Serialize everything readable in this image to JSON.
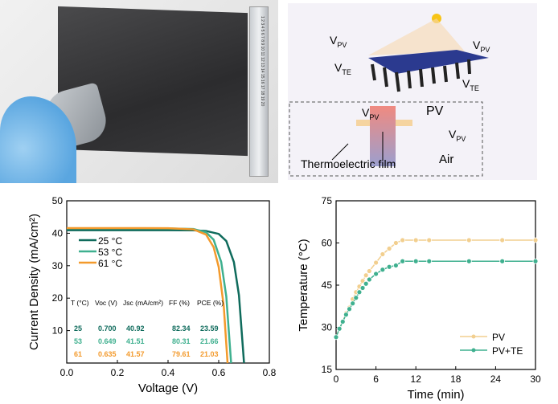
{
  "photo": {
    "ruler_marks": "1 2 3 4 5 6 7 8 9 10 11 12 13 14 15 16 17 18 19 20"
  },
  "diagram": {
    "vpv": "V",
    "vpv_sub": "PV",
    "vte": "V",
    "vte_sub": "TE",
    "pv": "PV",
    "air": "Air",
    "film": "Thermoelectric film"
  },
  "chart_data": [
    {
      "type": "line",
      "xlabel": "Voltage (V)",
      "ylabel": "Current Density (mA/cm²)",
      "xlim": [
        0,
        0.8
      ],
      "ylim": [
        0,
        50
      ],
      "xticks": [
        "0.0",
        "0.2",
        "0.4",
        "0.6",
        "0.8"
      ],
      "yticks": [
        "10",
        "20",
        "30",
        "40",
        "50"
      ],
      "legend": "top-left",
      "series": [
        {
          "name": "25 °C",
          "color": "#0f6b5c",
          "x": [
            0,
            0.1,
            0.2,
            0.3,
            0.4,
            0.5,
            0.55,
            0.6,
            0.63,
            0.66,
            0.68,
            0.7
          ],
          "y": [
            40.92,
            40.92,
            40.92,
            40.92,
            40.92,
            40.9,
            40.7,
            39.8,
            37.6,
            31.1,
            20.9,
            0
          ]
        },
        {
          "name": "53 °C",
          "color": "#3fb08f",
          "x": [
            0,
            0.1,
            0.2,
            0.3,
            0.4,
            0.5,
            0.55,
            0.58,
            0.61,
            0.63,
            0.649
          ],
          "y": [
            41.51,
            41.51,
            41.51,
            41.51,
            41.5,
            41.3,
            40.3,
            38.0,
            31.1,
            20.5,
            0
          ]
        },
        {
          "name": "61 °C",
          "color": "#f39a2c",
          "x": [
            0,
            0.1,
            0.2,
            0.3,
            0.4,
            0.5,
            0.55,
            0.58,
            0.6,
            0.62,
            0.635
          ],
          "y": [
            41.57,
            41.57,
            41.57,
            41.57,
            41.55,
            41.2,
            39.6,
            35.7,
            29.6,
            17.5,
            0
          ]
        }
      ],
      "table": {
        "headers": [
          "T (°C)",
          "Voc (V)",
          "Jsc (mA/cm²)",
          "FF (%)",
          "PCE (%)"
        ],
        "rows": [
          [
            "25",
            "0.700",
            "40.92",
            "82.34",
            "23.59"
          ],
          [
            "53",
            "0.649",
            "41.51",
            "80.31",
            "21.66"
          ],
          [
            "61",
            "0.635",
            "41.57",
            "79.61",
            "21.03"
          ]
        ]
      }
    },
    {
      "type": "line",
      "xlabel": "Time (min)",
      "ylabel": "Temperature (°C)",
      "xlim": [
        0,
        30
      ],
      "ylim": [
        15,
        75
      ],
      "xticks": [
        "0",
        "6",
        "12",
        "18",
        "24",
        "30"
      ],
      "yticks": [
        "15",
        "30",
        "45",
        "60",
        "75"
      ],
      "legend": "bottom-right",
      "series": [
        {
          "name": "PV",
          "color": "#f2cf8f",
          "x": [
            0,
            0.5,
            1,
            1.5,
            2,
            2.5,
            3,
            3.5,
            4,
            4.5,
            5,
            6,
            7,
            8,
            9,
            10,
            12,
            14,
            20,
            25,
            30
          ],
          "y": [
            26.5,
            29.5,
            32,
            35,
            37,
            40,
            42.5,
            44.5,
            46.5,
            48.5,
            50,
            53,
            56,
            58,
            60,
            61,
            61,
            61,
            61,
            61,
            61
          ]
        },
        {
          "name": "PV+TE",
          "color": "#3fb08f",
          "x": [
            0,
            0.5,
            1,
            1.5,
            2,
            2.5,
            3,
            3.5,
            4,
            4.5,
            5,
            6,
            7,
            8,
            9,
            10,
            12,
            14,
            20,
            25,
            30
          ],
          "y": [
            26.5,
            29.5,
            32,
            34.5,
            36.5,
            38.5,
            40.5,
            42.5,
            44,
            45.5,
            47,
            49,
            50.5,
            51.5,
            52,
            53.5,
            53.5,
            53.5,
            53.5,
            53.5,
            53.5
          ]
        }
      ]
    }
  ]
}
